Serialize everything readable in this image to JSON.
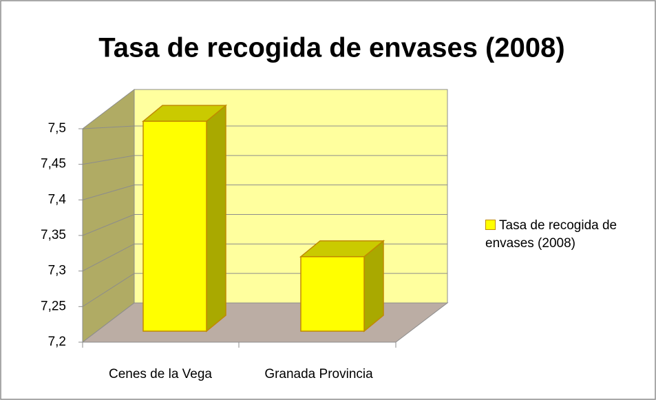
{
  "chart_data": {
    "type": "bar3d",
    "title": "Tasa de recogida de envases (2008)",
    "categories": [
      "Cenes de la Vega",
      "Granada Provincia"
    ],
    "series": [
      {
        "name": "Tasa de recogida de envases (2008)",
        "color": "#ffff00",
        "values": [
          7.51,
          7.31
        ]
      }
    ],
    "ylim": [
      7.2,
      7.5
    ],
    "yticks": [
      {
        "value": 7.2,
        "label": "7,2"
      },
      {
        "value": 7.25,
        "label": "7,25"
      },
      {
        "value": 7.3,
        "label": "7,3"
      },
      {
        "value": 7.35,
        "label": "7,35"
      },
      {
        "value": 7.4,
        "label": "7,4"
      },
      {
        "value": 7.45,
        "label": "7,45"
      },
      {
        "value": 7.5,
        "label": "7,5"
      }
    ],
    "grid": true,
    "legend": "right"
  }
}
